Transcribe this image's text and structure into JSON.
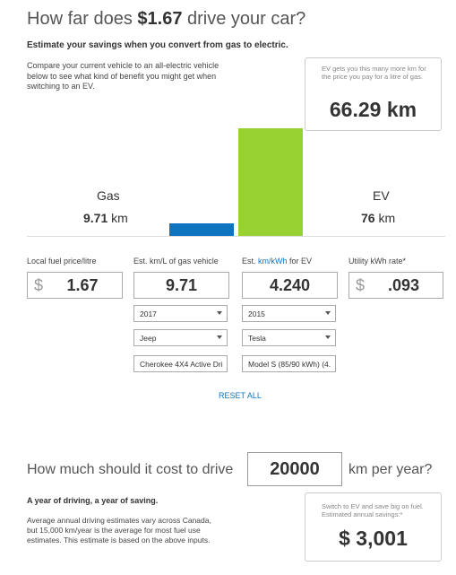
{
  "header": {
    "title_prefix": "How far does ",
    "title_amount": "$1.67",
    "title_suffix": " drive your car?",
    "subtitle": "Estimate your savings when you convert from gas to electric.",
    "intro": "Compare your current vehicle to an all-electric vehicle below to see what kind of benefit you might get when switching to an EV."
  },
  "ev_card": {
    "note": "EV gets you this many more km for the price you pay for a litre of gas.",
    "value": "66.29 km"
  },
  "chart_data": {
    "type": "bar",
    "categories": [
      "Gas",
      "EV"
    ],
    "values": [
      9.71,
      76
    ],
    "units": "km",
    "colors": [
      "#0f74c0",
      "#97d232"
    ]
  },
  "labels": {
    "gas": "Gas",
    "gas_value": "9.71",
    "gas_unit": " km",
    "ev": "EV",
    "ev_value": "76",
    "ev_unit": " km"
  },
  "fields": {
    "fuel_price": {
      "label": "Local fuel price/litre",
      "currency": "$",
      "value": "1.67"
    },
    "gas_efficiency": {
      "label": "Est. km/L of gas vehicle",
      "value": "9.71"
    },
    "ev_efficiency": {
      "label_prefix": "Est. ",
      "label_link": "km/kWh",
      "label_suffix": " for EV",
      "value": "4.240"
    },
    "utility_rate": {
      "label": "Utility kWh rate*",
      "currency": "$",
      "value": ".093"
    }
  },
  "gas_vehicle": {
    "year": "2017",
    "make": "Jeep",
    "model": "Cherokee 4X4 Active Dri"
  },
  "ev_vehicle": {
    "year": "2015",
    "make": "Tesla",
    "model": "Model S (85/90 kWh) (4."
  },
  "reset_label": "RESET ALL",
  "annual": {
    "question_prefix": "How much should it cost to drive",
    "km_value": "20000",
    "question_suffix": "km per year?",
    "title": "A year of driving, a year of saving.",
    "text": "Average annual driving estimates vary across Canada, but 15,000 km/year is the average for most fuel use estimates. This estimate is based on the above inputs."
  },
  "save_card": {
    "note": "Switch to EV and save big on fuel. Estimated annual savings:*",
    "value": "$ 3,001"
  }
}
